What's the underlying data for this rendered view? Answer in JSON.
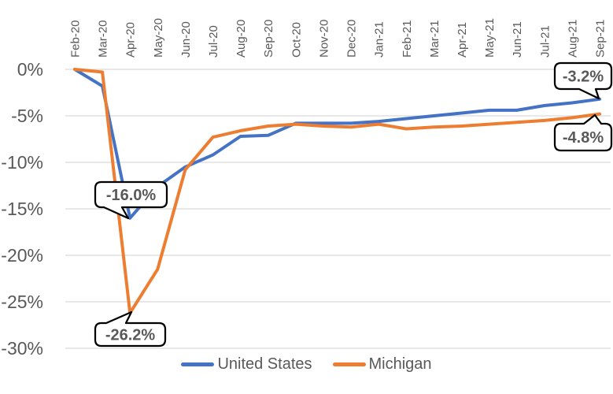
{
  "chart_data": {
    "type": "line",
    "title": "",
    "x_labels": [
      "Feb-20",
      "Mar-20",
      "Apr-20",
      "May-20",
      "Jun-20",
      "Jul-20",
      "Aug-20",
      "Sep-20",
      "Oct-20",
      "Nov-20",
      "Dec-20",
      "Jan-21",
      "Feb-21",
      "Mar-21",
      "Apr-21",
      "May-21",
      "Jun-21",
      "Jul-21",
      "Aug-21",
      "Sep-21"
    ],
    "series": [
      {
        "name": "United States",
        "color": "#4472C4",
        "values": [
          0.0,
          -1.8,
          -16.0,
          -12.6,
          -10.5,
          -9.2,
          -7.2,
          -7.1,
          -5.8,
          -5.8,
          -5.8,
          -5.6,
          -5.3,
          -5.0,
          -4.7,
          -4.4,
          -4.4,
          -3.9,
          -3.6,
          -3.2
        ]
      },
      {
        "name": "Michigan",
        "color": "#ED7D31",
        "values": [
          0.0,
          -0.3,
          -26.2,
          -21.5,
          -10.8,
          -7.3,
          -6.6,
          -6.1,
          -5.9,
          -6.1,
          -6.2,
          -5.9,
          -6.4,
          -6.2,
          -6.1,
          -5.9,
          -5.7,
          -5.5,
          -5.2,
          -4.8
        ]
      }
    ],
    "y_ticks": [
      "0%",
      "-5%",
      "-10%",
      "-15%",
      "-20%",
      "-25%",
      "-30%"
    ],
    "y_tick_values": [
      0,
      -5,
      -10,
      -15,
      -20,
      -25,
      -30
    ],
    "ylim": [
      -30,
      0
    ],
    "grid": true,
    "gridline_color": "#D9D9D9",
    "axis_text_color": "#595959",
    "legend_position": "bottom",
    "annotations": [
      {
        "text": "-16.0%",
        "series": "United States",
        "x_label": "Apr-20",
        "value": -16.0
      },
      {
        "text": "-26.2%",
        "series": "Michigan",
        "x_label": "Apr-20",
        "value": -26.2
      },
      {
        "text": "-3.2%",
        "series": "United States",
        "x_label": "Sep-21",
        "value": -3.2
      },
      {
        "text": "-4.8%",
        "series": "Michigan",
        "x_label": "Sep-21",
        "value": -4.8
      }
    ]
  }
}
